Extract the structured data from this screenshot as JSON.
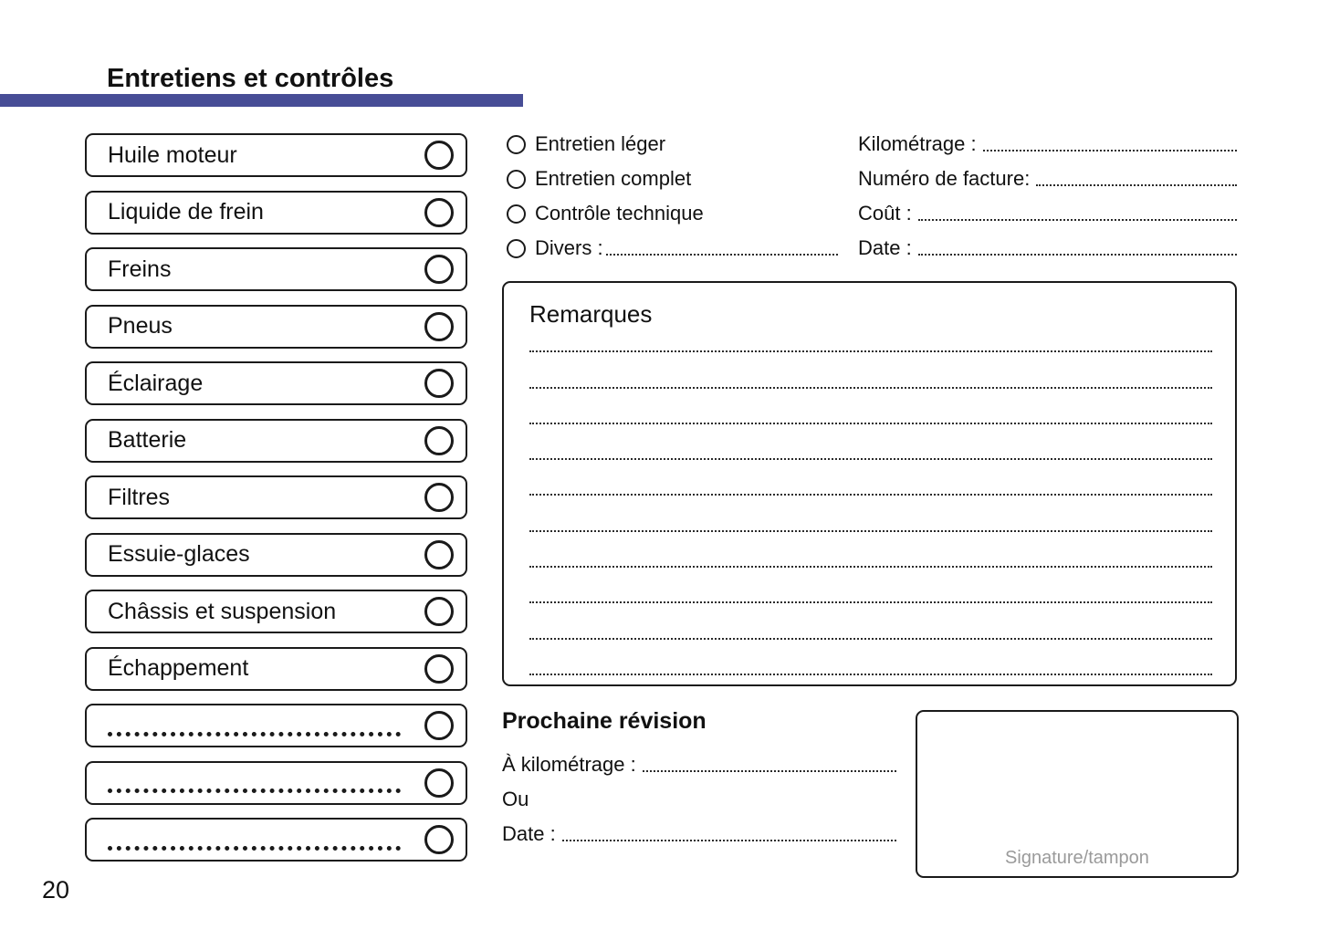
{
  "page": {
    "title": "Entretiens et contrôles",
    "page_number": "20"
  },
  "colors": {
    "accent": "#474d96",
    "muted_text": "#9a9a9a",
    "text": "#111111"
  },
  "checklist": {
    "items": [
      {
        "label": "Huile moteur"
      },
      {
        "label": "Liquide de frein"
      },
      {
        "label": "Freins"
      },
      {
        "label": "Pneus"
      },
      {
        "label": "Éclairage"
      },
      {
        "label": "Batterie"
      },
      {
        "label": "Filtres"
      },
      {
        "label": "Essuie-glaces"
      },
      {
        "label": "Châssis et suspension"
      },
      {
        "label": "Échappement"
      },
      {
        "label": ""
      },
      {
        "label": ""
      },
      {
        "label": ""
      }
    ]
  },
  "service_type": {
    "options": [
      {
        "label": "Entretien léger"
      },
      {
        "label": "Entretien complet"
      },
      {
        "label": "Contrôle technique"
      },
      {
        "label": "Divers :"
      }
    ]
  },
  "invoice_fields": [
    {
      "label": "Kilométrage :"
    },
    {
      "label": "Numéro de facture:"
    },
    {
      "label": "Coût :"
    },
    {
      "label": "Date :"
    }
  ],
  "remarks": {
    "title": "Remarques",
    "line_count": 10
  },
  "next_service": {
    "title": "Prochaine révision",
    "rows": [
      {
        "label": "À kilométrage :"
      },
      {
        "label": "Ou"
      },
      {
        "label": "Date :"
      }
    ]
  },
  "signature": {
    "label": "Signature/tampon"
  }
}
